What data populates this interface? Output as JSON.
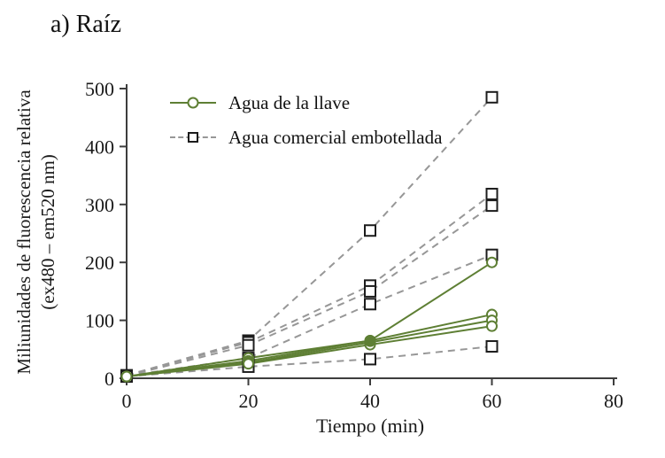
{
  "title": "a) Raíz",
  "axes": {
    "x_label": "Tiempo (min)",
    "y_label_line1": "Miliunidades de fluorescencia relativa",
    "y_label_line2": "(ex480 – em520 nm)"
  },
  "legend": {
    "items": [
      {
        "label": "Agua de la llave"
      },
      {
        "label": "Agua comercial embotellada"
      }
    ]
  },
  "colors": {
    "tap_line": "#5e7f34",
    "bottled_line": "#979797",
    "bottled_marker": "#1c1c1c",
    "axis": "#3d3d3d",
    "text": "#1a1a1a"
  },
  "chart_data": {
    "type": "line",
    "title": "a) Raíz",
    "xlabel": "Tiempo (min)",
    "ylabel": "Miliunidades de fluorescencia relativa (ex480 – em520 nm)",
    "xlim": [
      0,
      80
    ],
    "ylim": [
      0,
      500
    ],
    "xticks": [
      0,
      20,
      40,
      60,
      80
    ],
    "yticks": [
      0,
      100,
      200,
      300,
      400,
      500
    ],
    "grid": false,
    "legend_position": "upper-left-inside",
    "x": [
      0,
      20,
      40,
      60
    ],
    "series": [
      {
        "name": "Agua de la llave (1)",
        "group": "tap",
        "style": "solid-circle",
        "values": [
          3,
          35,
          65,
          200
        ]
      },
      {
        "name": "Agua de la llave (2)",
        "group": "tap",
        "style": "solid-circle",
        "values": [
          3,
          30,
          65,
          110
        ]
      },
      {
        "name": "Agua de la llave (3)",
        "group": "tap",
        "style": "solid-circle",
        "values": [
          3,
          27,
          62,
          100
        ]
      },
      {
        "name": "Agua de la llave (4)",
        "group": "tap",
        "style": "solid-circle",
        "values": [
          3,
          25,
          58,
          90
        ]
      },
      {
        "name": "Agua comercial embotellada (1)",
        "group": "bottled",
        "style": "dashed-square",
        "values": [
          5,
          65,
          255,
          485
        ]
      },
      {
        "name": "Agua comercial embotellada (2)",
        "group": "bottled",
        "style": "dashed-square",
        "values": [
          5,
          62,
          160,
          318
        ]
      },
      {
        "name": "Agua comercial embotellada (3)",
        "group": "bottled",
        "style": "dashed-square",
        "values": [
          4,
          57,
          150,
          298
        ]
      },
      {
        "name": "Agua comercial embotellada (4)",
        "group": "bottled",
        "style": "dashed-square",
        "values": [
          4,
          35,
          128,
          213
        ]
      },
      {
        "name": "Agua comercial embotellada (5)",
        "group": "bottled",
        "style": "dashed-square",
        "values": [
          3,
          20,
          33,
          55
        ]
      }
    ],
    "filled_point": {
      "group": "tap",
      "x": 40,
      "y": 64
    }
  }
}
